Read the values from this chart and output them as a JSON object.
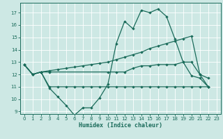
{
  "xlabel": "Humidex (Indice chaleur)",
  "bg_color": "#cde8e4",
  "grid_color": "#ffffff",
  "line_color": "#1a6b5a",
  "xlim": [
    -0.5,
    23.5
  ],
  "ylim": [
    8.8,
    17.8
  ],
  "yticks": [
    9,
    10,
    11,
    12,
    13,
    14,
    15,
    16,
    17
  ],
  "xticks": [
    0,
    1,
    2,
    3,
    4,
    5,
    6,
    7,
    8,
    9,
    10,
    11,
    12,
    13,
    14,
    15,
    16,
    17,
    18,
    19,
    20,
    21,
    22,
    23
  ],
  "line1_x": [
    0,
    1,
    2,
    3,
    4,
    5,
    6,
    7,
    8,
    9,
    10,
    11,
    12,
    13,
    14,
    15,
    16,
    17,
    18,
    19,
    20,
    21,
    22
  ],
  "line1_y": [
    12.8,
    12.0,
    12.2,
    10.9,
    10.2,
    9.5,
    8.7,
    9.3,
    9.3,
    10.1,
    11.2,
    14.5,
    16.3,
    15.7,
    17.2,
    17.0,
    17.3,
    16.7,
    14.9,
    13.0,
    11.9,
    11.7,
    11.0
  ],
  "line2_x": [
    0,
    1,
    2,
    3,
    4,
    5,
    6,
    7,
    8,
    9,
    10,
    11,
    12,
    13,
    14,
    15,
    16,
    17,
    18,
    19,
    20,
    21,
    22
  ],
  "line2_y": [
    12.8,
    12.0,
    12.2,
    12.3,
    12.4,
    12.5,
    12.6,
    12.7,
    12.8,
    12.9,
    13.0,
    13.2,
    13.4,
    13.6,
    13.8,
    14.1,
    14.3,
    14.5,
    14.7,
    14.9,
    15.1,
    12.0,
    11.7
  ],
  "line3_x": [
    0,
    1,
    2,
    3,
    10,
    11,
    12,
    13,
    14,
    15,
    16,
    17,
    18,
    19,
    20,
    21,
    22
  ],
  "line3_y": [
    12.8,
    12.0,
    12.2,
    12.2,
    12.2,
    12.2,
    12.2,
    12.5,
    12.7,
    12.7,
    12.8,
    12.8,
    12.8,
    13.0,
    13.0,
    12.0,
    11.0
  ],
  "line4_x": [
    0,
    1,
    2,
    3,
    4,
    5,
    6,
    7,
    8,
    9,
    10,
    11,
    12,
    13,
    14,
    15,
    16,
    17,
    18,
    19,
    20,
    21,
    22
  ],
  "line4_y": [
    12.8,
    12.0,
    12.2,
    11.0,
    11.0,
    11.0,
    11.0,
    11.0,
    11.0,
    11.0,
    11.0,
    11.0,
    11.0,
    11.0,
    11.0,
    11.0,
    11.0,
    11.0,
    11.0,
    11.0,
    11.0,
    11.0,
    11.0
  ]
}
